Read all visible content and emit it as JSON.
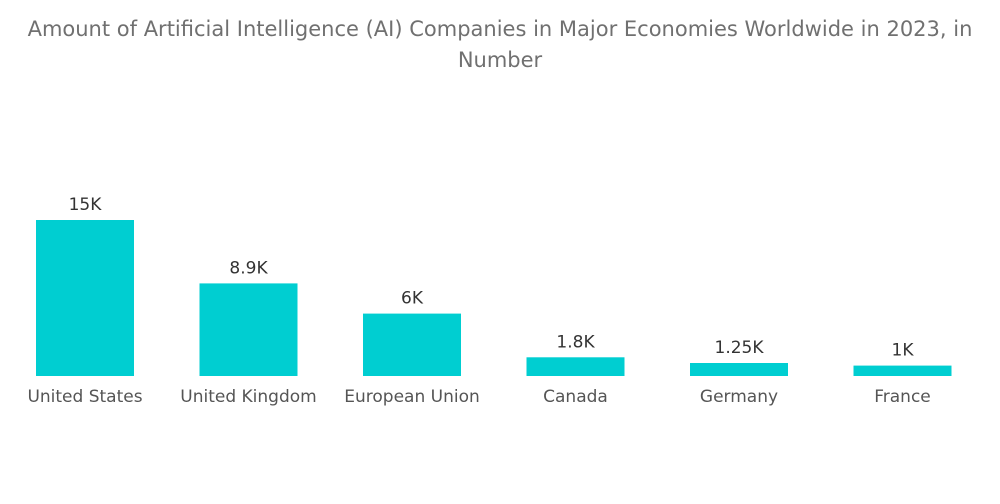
{
  "chart_data": {
    "type": "bar",
    "title": "Amount of Artificial Intelligence (AI) Companies in Major Economies Worldwide in 2023, in",
    "title_line2": "Number",
    "xlabel": "",
    "ylabel": "",
    "categories": [
      "United States",
      "United Kingdom",
      "European Union",
      "Canada",
      "Germany",
      "France"
    ],
    "values": [
      15000,
      8900,
      6000,
      1800,
      1250,
      1000
    ],
    "data_labels": [
      "15K",
      "8.9K",
      "6K",
      "1.8K",
      "1.25K",
      "1K"
    ],
    "ylim": [
      0,
      15000
    ],
    "grid": false,
    "bar_color": "#00CED1"
  }
}
